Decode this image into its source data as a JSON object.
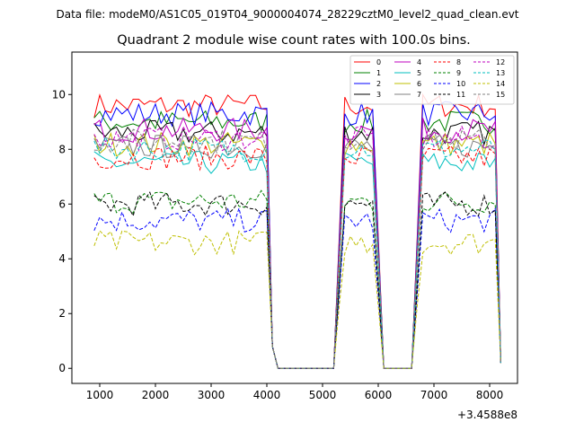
{
  "chart_data": {
    "type": "line",
    "suptitle": "Data file: modeM0/AS1C05_019T04_9000004074_28229cztM0_level2_quad_clean.evt",
    "title": "Quadrant 2 module wise count rates with 100.0s bins.",
    "xlabel": "",
    "ylabel": "",
    "x_offset_label": "+3.4588e8",
    "xlim": [
      500,
      8500
    ],
    "ylim": [
      -0.55,
      11.55
    ],
    "x_ticks": [
      1000,
      2000,
      3000,
      4000,
      5000,
      6000,
      7000,
      8000
    ],
    "x_tick_labels": [
      "1000",
      "2000",
      "3000",
      "4000",
      "5000",
      "6000",
      "7000",
      "8000"
    ],
    "y_ticks": [
      0,
      2,
      4,
      6,
      8,
      10
    ],
    "y_tick_labels": [
      "0",
      "2",
      "4",
      "6",
      "8",
      "10"
    ],
    "grid": false,
    "legend_position": "top-right",
    "legend_columns": 4,
    "gti_segments": [
      [
        900,
        4000
      ],
      [
        5400,
        5900
      ],
      [
        6800,
        8100
      ]
    ],
    "series": [
      {
        "name": "0",
        "color": "#ff0000",
        "dash": "solid",
        "level": 9.6
      },
      {
        "name": "1",
        "color": "#008000",
        "dash": "solid",
        "level": 9.0
      },
      {
        "name": "2",
        "color": "#0000ff",
        "dash": "solid",
        "level": 9.3
      },
      {
        "name": "3",
        "color": "#000000",
        "dash": "solid",
        "level": 8.6
      },
      {
        "name": "4",
        "color": "#bf00bf",
        "dash": "solid",
        "level": 8.7
      },
      {
        "name": "5",
        "color": "#00bfbf",
        "dash": "solid",
        "level": 7.5
      },
      {
        "name": "6",
        "color": "#bfbf00",
        "dash": "solid",
        "level": 8.2
      },
      {
        "name": "7",
        "color": "#808080",
        "dash": "solid",
        "level": 8.1
      },
      {
        "name": "8",
        "color": "#ff0000",
        "dash": "dashed",
        "level": 7.7
      },
      {
        "name": "9",
        "color": "#008000",
        "dash": "dashed",
        "level": 6.1
      },
      {
        "name": "10",
        "color": "#0000ff",
        "dash": "dashed",
        "level": 5.4
      },
      {
        "name": "11",
        "color": "#000000",
        "dash": "dashed",
        "level": 6.0
      },
      {
        "name": "12",
        "color": "#bf00bf",
        "dash": "dashed",
        "level": 8.4
      },
      {
        "name": "13",
        "color": "#00bfbf",
        "dash": "dashed",
        "level": 8.0
      },
      {
        "name": "14",
        "color": "#bfbf00",
        "dash": "dashed",
        "level": 4.6
      },
      {
        "name": "15",
        "color": "#808080",
        "dash": "dashed",
        "level": 8.3
      }
    ]
  }
}
